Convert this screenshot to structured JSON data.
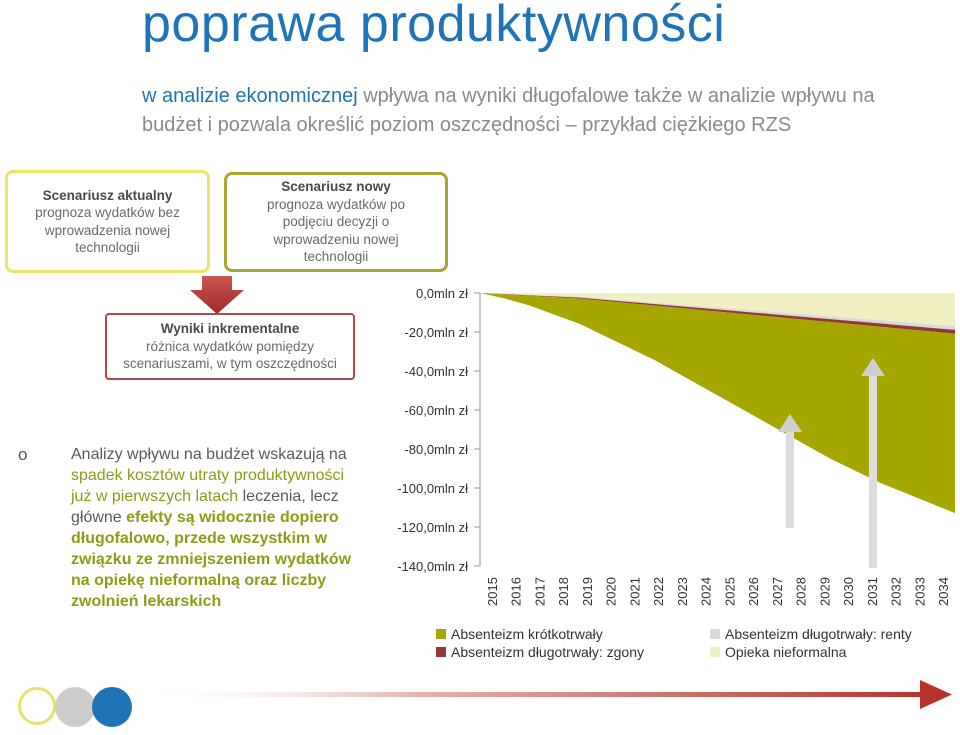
{
  "title": "poprawa produktywności",
  "subtitle": {
    "highlight": "w analizie ekonomicznej",
    "rest": " wpływa na wyniki długofalowe także w analizie wpływu na budżet i pozwala określić poziom oszczędności – przykład ciężkiego RZS"
  },
  "boxes": {
    "current": {
      "title": "Scenariusz aktualny",
      "body": "prognoza wydatków bez wprowadzenia nowej technologii"
    },
    "new": {
      "title": "Scenariusz nowy",
      "body": "prognoza wydatków po podjęciu decyzji o wprowadzeniu nowej technologii"
    },
    "incremental": {
      "title": "Wyniki inkrementalne",
      "body": "różnica wydatków pomiędzy scenariuszami, w tym oszczędności"
    }
  },
  "bullet_marker": "o",
  "description": {
    "p1": "Analizy wpływu na budżet wskazują na ",
    "p2": "spadek kosztów utraty produktywności już w pierwszych latach",
    "p3": " leczenia, lecz główne ",
    "p4": "efekty są widocznie dopiero długofalowo, przede wszystkim w związku ze zmniejszeniem wydatków na opiekę nieformalną oraz liczby zwolnień lekarskich"
  },
  "colors": {
    "title_blue": "#1f73b7",
    "olive": "#a5a600",
    "dark_red": "#953735",
    "light_gray": "#d9d9d9",
    "cream": "#f0efc2",
    "arrow_red": "#c0392b"
  },
  "chart_data": {
    "type": "area",
    "x": [
      "2015",
      "2016",
      "2017",
      "2018",
      "2019",
      "2020",
      "2021",
      "2022",
      "2023",
      "2024",
      "2025",
      "2026",
      "2027",
      "2028",
      "2029",
      "2030",
      "2031",
      "2032",
      "2033",
      "2034"
    ],
    "ylim": [
      -140,
      0
    ],
    "yticks": [
      "0,0mln zł",
      "-20,0mln zł",
      "-40,0mln zł",
      "-60,0mln zł",
      "-80,0mln zł",
      "-100,0mln zł",
      "-120,0mln zł",
      "-140,0mln zł"
    ],
    "yticks_values": [
      0,
      -20,
      -40,
      -60,
      -80,
      -100,
      -120,
      -140
    ],
    "series": [
      {
        "name": "Absenteizm krótkotrwały",
        "color": "#a5a600",
        "values": [
          0,
          -2,
          -5,
          -9,
          -13,
          -18,
          -23,
          -28,
          -34,
          -40,
          -46,
          -52,
          -58,
          -64,
          -70,
          -75,
          -80,
          -84,
          -88,
          -92
        ]
      },
      {
        "name": "Absenteizm długotrwały: zgony",
        "color": "#953735",
        "values": [
          0,
          -0.2,
          -0.3,
          -0.4,
          -0.5,
          -0.6,
          -0.7,
          -0.8,
          -0.9,
          -1,
          -1.1,
          -1.2,
          -1.3,
          -1.4,
          -1.5,
          -1.6,
          -1.7,
          -1.8,
          -1.9,
          -2
        ]
      },
      {
        "name": "Absenteizm długotrwały: renty",
        "color": "#d9d9d9",
        "values": [
          0,
          -0.1,
          -0.2,
          -0.3,
          -0.4,
          -0.5,
          -0.6,
          -0.7,
          -0.8,
          -0.9,
          -1,
          -1.1,
          -1.2,
          -1.3,
          -1.4,
          -1.5,
          -1.6,
          -1.7,
          -1.8,
          -1.9
        ]
      },
      {
        "name": "Opieka nieformalna",
        "color": "#f0efc2",
        "values": [
          0,
          -0.5,
          -1,
          -1.5,
          -2,
          -3,
          -4,
          -5,
          -6,
          -7,
          -8,
          -9,
          -10,
          -11,
          -12,
          -13,
          -14,
          -15,
          -16,
          -17
        ]
      }
    ],
    "legend": [
      "Absenteizm krótkotrwały",
      "Absenteizm długotrwały: renty",
      "Absenteizm długotrwały: zgony",
      "Opieka nieformalna"
    ]
  }
}
